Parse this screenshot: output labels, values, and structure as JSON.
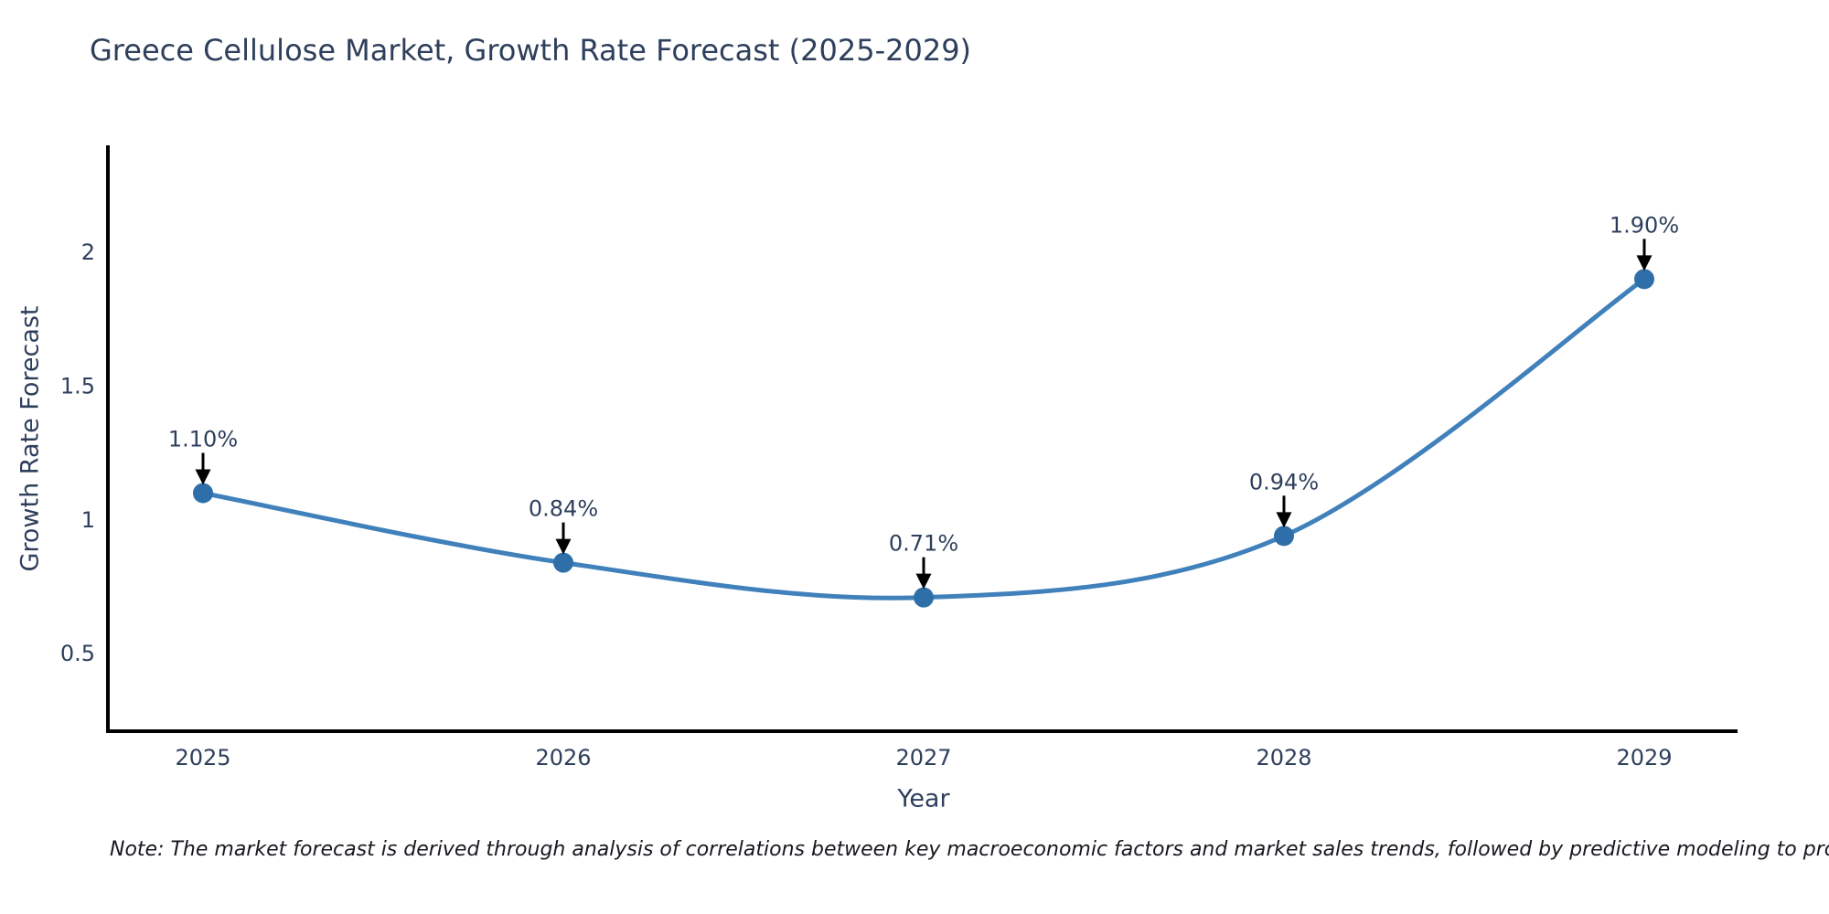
{
  "title": "Greece Cellulose Market, Growth Rate Forecast (2025-2029)",
  "note": "Note: The market forecast is derived through analysis of correlations between key macroeconomic factors and market sales trends, followed by predictive modeling to project future sales",
  "chart_data": {
    "type": "line",
    "title": "Greece Cellulose Market, Growth Rate Forecast (2025-2029)",
    "xlabel": "Year",
    "ylabel": "Growth Rate Forecast",
    "x": [
      "2025",
      "2026",
      "2027",
      "2028",
      "2029"
    ],
    "values": [
      1.1,
      0.84,
      0.71,
      0.94,
      1.9
    ],
    "point_labels": [
      "1.10%",
      "0.84%",
      "0.71%",
      "0.94%",
      "1.90%"
    ],
    "yticks": [
      0.5,
      1,
      1.5,
      2
    ],
    "ytick_labels": [
      "0.5",
      "1",
      "1.5",
      "2"
    ],
    "ylim": [
      0.21,
      2.4
    ],
    "line_shape": "spline",
    "grid": false,
    "legend": "none",
    "colors": {
      "line": "#4181bb",
      "marker": "#2f6fa9",
      "arrow": "#000000",
      "axis": "#000000",
      "tick_text": "#2e3f5c",
      "annotation_text": "#2e3f5c"
    }
  }
}
